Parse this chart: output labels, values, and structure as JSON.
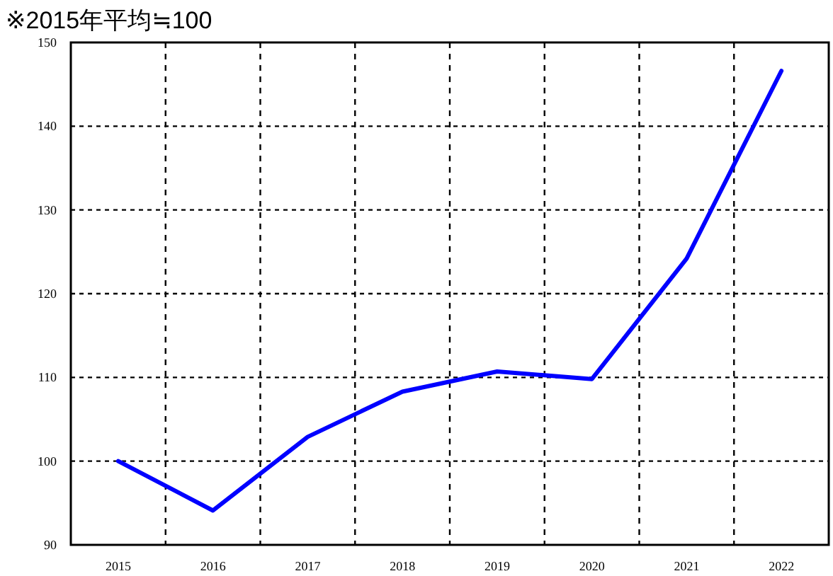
{
  "chart_data": {
    "type": "line",
    "title": "※2015年平均≒100",
    "categories": [
      "2015",
      "2016",
      "2017",
      "2018",
      "2019",
      "2020",
      "2021",
      "2022"
    ],
    "series": [
      {
        "color": "#0000ff",
        "values": [
          100.0,
          94.1,
          102.9,
          108.3,
          110.7,
          109.8,
          124.2,
          146.6
        ]
      }
    ],
    "ylim": [
      90,
      150
    ],
    "yticks": [
      90,
      100,
      110,
      120,
      130,
      140,
      150
    ],
    "grid": true,
    "marker": "none",
    "line_style": "solid"
  }
}
